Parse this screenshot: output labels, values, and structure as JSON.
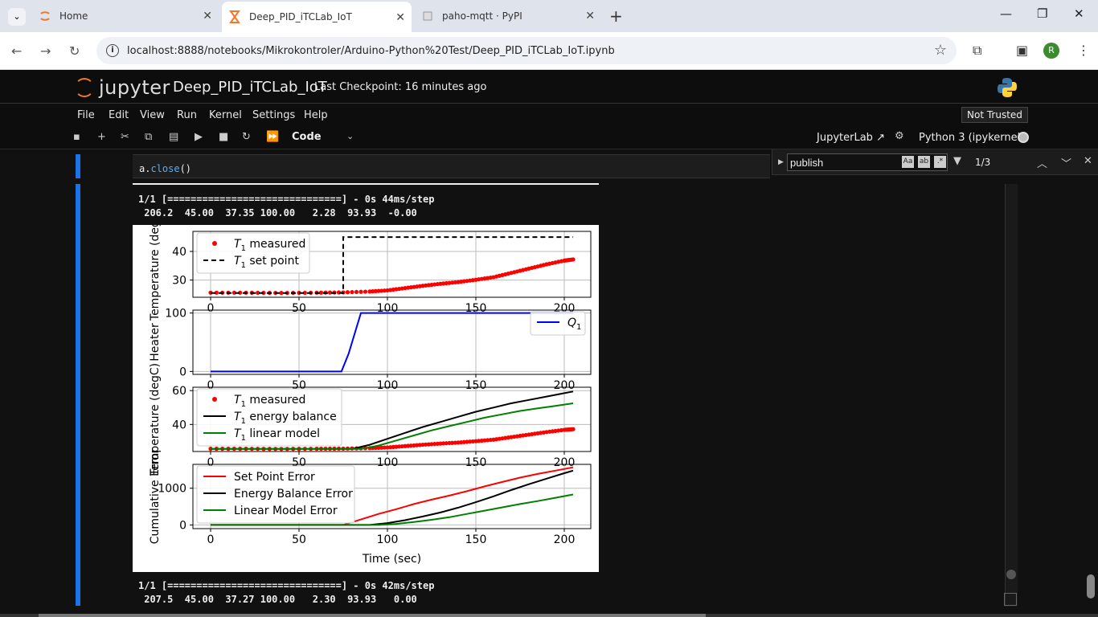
{
  "browser": {
    "tabs": [
      {
        "title": "Home",
        "icon": "jupyter-orange-icon"
      },
      {
        "title": "Deep_PID_iTCLab_IoT",
        "icon": "hourglass-icon"
      },
      {
        "title": "paho-mqtt · PyPI",
        "icon": "pypi-cube-icon"
      }
    ],
    "url": "localhost:8888/notebooks/Mikrokontroler/Arduino-Python%20Test/Deep_PID_iTCLab_IoT.ipynb",
    "avatar_letter": "R"
  },
  "jupyter": {
    "logo_text": "jupyter",
    "notebook_title": "Deep_PID_iTCLab_IoT",
    "checkpoint": "Last Checkpoint: 16 minutes ago",
    "menu": [
      "File",
      "Edit",
      "View",
      "Run",
      "Kernel",
      "Settings",
      "Help"
    ],
    "trust": "Not Trusted",
    "cell_type": "Code",
    "jupyterlab_link": "JupyterLab",
    "kernel_name": "Python 3 (ipykernel)"
  },
  "search": {
    "query": "publish",
    "count": "1/3",
    "opt_case": "Aa",
    "opt_word": "ab",
    "opt_regex": ".*"
  },
  "cell": {
    "code_var": "a.",
    "code_fn": "close",
    "code_paren": "()"
  },
  "output": {
    "line1": "1/1 [==============================] - 0s 44ms/step",
    "line2": " 206.2  45.00  37.35 100.00   2.28  93.93  -0.00",
    "line3": "1/1 [==============================] - 0s 42ms/step",
    "line4": " 207.5  45.00  37.27 100.00   2.30  93.93   0.00"
  },
  "chart_data": [
    {
      "type": "line",
      "ylabel": "Temperature (degC)",
      "xlim": [
        -10,
        215
      ],
      "ylim": [
        24,
        47
      ],
      "yticks": [
        30,
        40
      ],
      "series": [
        {
          "name": "T1 measured",
          "style": "dots",
          "color": "#ff0000",
          "x": [
            0,
            20,
            40,
            60,
            75,
            90,
            100,
            110,
            120,
            130,
            140,
            150,
            160,
            170,
            180,
            190,
            200,
            205
          ],
          "y": [
            25.6,
            25.6,
            25.5,
            25.6,
            25.7,
            26,
            26.4,
            27.2,
            28,
            28.7,
            29.3,
            30.1,
            31,
            32.5,
            34,
            35.5,
            36.8,
            37.2
          ]
        },
        {
          "name": "T1 set point",
          "style": "dashed",
          "color": "#000000",
          "x": [
            0,
            75,
            75,
            205
          ],
          "y": [
            25.5,
            25.5,
            45,
            45
          ]
        }
      ]
    },
    {
      "type": "line",
      "ylabel": "Heater",
      "xlim": [
        -10,
        215
      ],
      "ylim": [
        -5,
        105
      ],
      "yticks": [
        0,
        100
      ],
      "series": [
        {
          "name": "Q1",
          "style": "solid",
          "color": "#0000ff",
          "x": [
            0,
            74,
            78,
            85,
            205
          ],
          "y": [
            0,
            0,
            30,
            100,
            100
          ]
        }
      ]
    },
    {
      "type": "line",
      "ylabel": "Temperature (degC)",
      "xlim": [
        -10,
        215
      ],
      "ylim": [
        24,
        62
      ],
      "yticks": [
        40,
        60
      ],
      "series": [
        {
          "name": "T1 measured",
          "style": "dots",
          "color": "#ff0000",
          "x": [
            0,
            20,
            40,
            60,
            75,
            90,
            100,
            110,
            120,
            130,
            140,
            150,
            160,
            170,
            180,
            190,
            200,
            205
          ],
          "y": [
            25.6,
            25.6,
            25.5,
            25.6,
            25.7,
            26,
            26.4,
            27.2,
            28,
            28.7,
            29.3,
            30.1,
            31,
            32.5,
            34,
            35.5,
            36.8,
            37.2
          ]
        },
        {
          "name": "T1 energy balance",
          "style": "solid",
          "color": "#000000",
          "x": [
            0,
            80,
            90,
            100,
            110,
            120,
            130,
            140,
            150,
            160,
            170,
            180,
            190,
            200,
            205
          ],
          "y": [
            25.5,
            25.5,
            28,
            31.5,
            35,
            38.5,
            41.5,
            44.5,
            47.5,
            50,
            52.5,
            54.5,
            56.5,
            58.5,
            59.5
          ]
        },
        {
          "name": "T1 linear model",
          "style": "solid",
          "color": "#008000",
          "x": [
            0,
            85,
            95,
            105,
            115,
            125,
            135,
            145,
            155,
            165,
            175,
            185,
            195,
            205
          ],
          "y": [
            25.5,
            25.5,
            27.5,
            30.5,
            33.5,
            36.5,
            39,
            41.5,
            44,
            46,
            48,
            49.5,
            51,
            52.5
          ]
        }
      ]
    },
    {
      "type": "line",
      "xlabel": "Time (sec)",
      "ylabel": "Cumulative Error",
      "xlim": [
        -10,
        215
      ],
      "ylim": [
        -100,
        1650
      ],
      "yticks": [
        0,
        1000
      ],
      "xticks": [
        0,
        50,
        100,
        150,
        200
      ],
      "series": [
        {
          "name": "Set Point Error",
          "style": "solid",
          "color": "#ff0000",
          "x": [
            0,
            75,
            85,
            95,
            105,
            115,
            125,
            135,
            145,
            155,
            165,
            175,
            185,
            195,
            205
          ],
          "y": [
            0,
            0,
            150,
            300,
            430,
            570,
            690,
            800,
            920,
            1050,
            1170,
            1290,
            1390,
            1480,
            1570
          ]
        },
        {
          "name": "Energy Balance Error",
          "style": "solid",
          "color": "#000000",
          "x": [
            0,
            90,
            100,
            110,
            120,
            130,
            140,
            150,
            160,
            170,
            180,
            190,
            200,
            205
          ],
          "y": [
            0,
            0,
            50,
            130,
            230,
            340,
            470,
            620,
            780,
            950,
            1110,
            1260,
            1410,
            1480
          ]
        },
        {
          "name": "Linear Model Error",
          "style": "solid",
          "color": "#008000",
          "x": [
            0,
            95,
            105,
            115,
            125,
            135,
            145,
            155,
            165,
            175,
            185,
            195,
            205
          ],
          "y": [
            0,
            0,
            30,
            80,
            140,
            210,
            300,
            390,
            480,
            570,
            650,
            740,
            830
          ]
        }
      ]
    }
  ]
}
